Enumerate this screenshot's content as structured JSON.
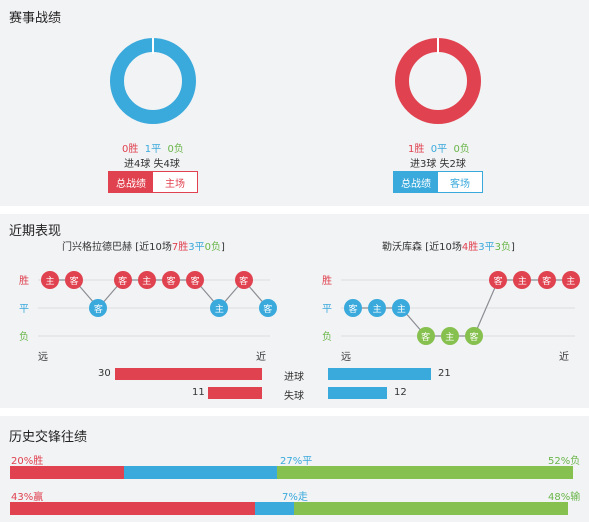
{
  "stats": {
    "title": "赛事战绩",
    "home": {
      "wins": "0胜",
      "draws": "1平",
      "losses": "0负",
      "goals": "进4球 失4球",
      "tab_active": "总战绩",
      "tab_other": "主场",
      "donut_color": "#3aa9dc"
    },
    "away": {
      "wins": "1胜",
      "draws": "0平",
      "losses": "0负",
      "goals": "进3球 失2球",
      "tab_active": "总战绩",
      "tab_other": "客场",
      "donut_color": "#e0424f"
    }
  },
  "recent": {
    "title": "近期表现",
    "home": {
      "team": "门兴格拉德巴赫",
      "summary_prefix": "[近10场",
      "w": "7胜",
      "d": "3平",
      "l": "0负",
      "summary_suffix": "]",
      "results": [
        {
          "venue": "主",
          "result": "W"
        },
        {
          "venue": "客",
          "result": "W"
        },
        {
          "venue": "客",
          "result": "D"
        },
        {
          "venue": "客",
          "result": "W"
        },
        {
          "venue": "主",
          "result": "W"
        },
        {
          "venue": "客",
          "result": "W"
        },
        {
          "venue": "客",
          "result": "W"
        },
        {
          "venue": "主",
          "result": "D"
        },
        {
          "venue": "客",
          "result": "W"
        },
        {
          "venue": "客",
          "result": "D"
        }
      ],
      "far": "远",
      "near": "近"
    },
    "away": {
      "team": "勒沃库森",
      "summary_prefix": "[近10场",
      "w": "4胜",
      "d": "3平",
      "l": "3负",
      "summary_suffix": "]",
      "results": [
        {
          "venue": "客",
          "result": "D"
        },
        {
          "venue": "主",
          "result": "D"
        },
        {
          "venue": "主",
          "result": "D"
        },
        {
          "venue": "客",
          "result": "L"
        },
        {
          "venue": "主",
          "result": "L"
        },
        {
          "venue": "客",
          "result": "L"
        },
        {
          "venue": "客",
          "result": "W"
        },
        {
          "venue": "主",
          "result": "W"
        },
        {
          "venue": "客",
          "result": "W"
        },
        {
          "venue": "主",
          "result": "W"
        }
      ],
      "far": "远",
      "near": "近"
    },
    "labels": {
      "win": "胜",
      "draw": "平",
      "loss": "负"
    },
    "goals_for_label": "进球",
    "goals_against_label": "失球",
    "home_goals_for": 30,
    "home_goals_against": 11,
    "away_goals_for": 21,
    "away_goals_against": 12
  },
  "h2h": {
    "title": "历史交锋往绩",
    "row1": {
      "win": "20%胜",
      "draw": "27%平",
      "loss": "52%负",
      "win_pct": 20,
      "draw_pct": 27,
      "loss_pct": 52
    },
    "row2": {
      "win": "43%赢",
      "draw": "7%走",
      "loss": "48%输",
      "win_pct": 43,
      "draw_pct": 7,
      "loss_pct": 48
    }
  }
}
